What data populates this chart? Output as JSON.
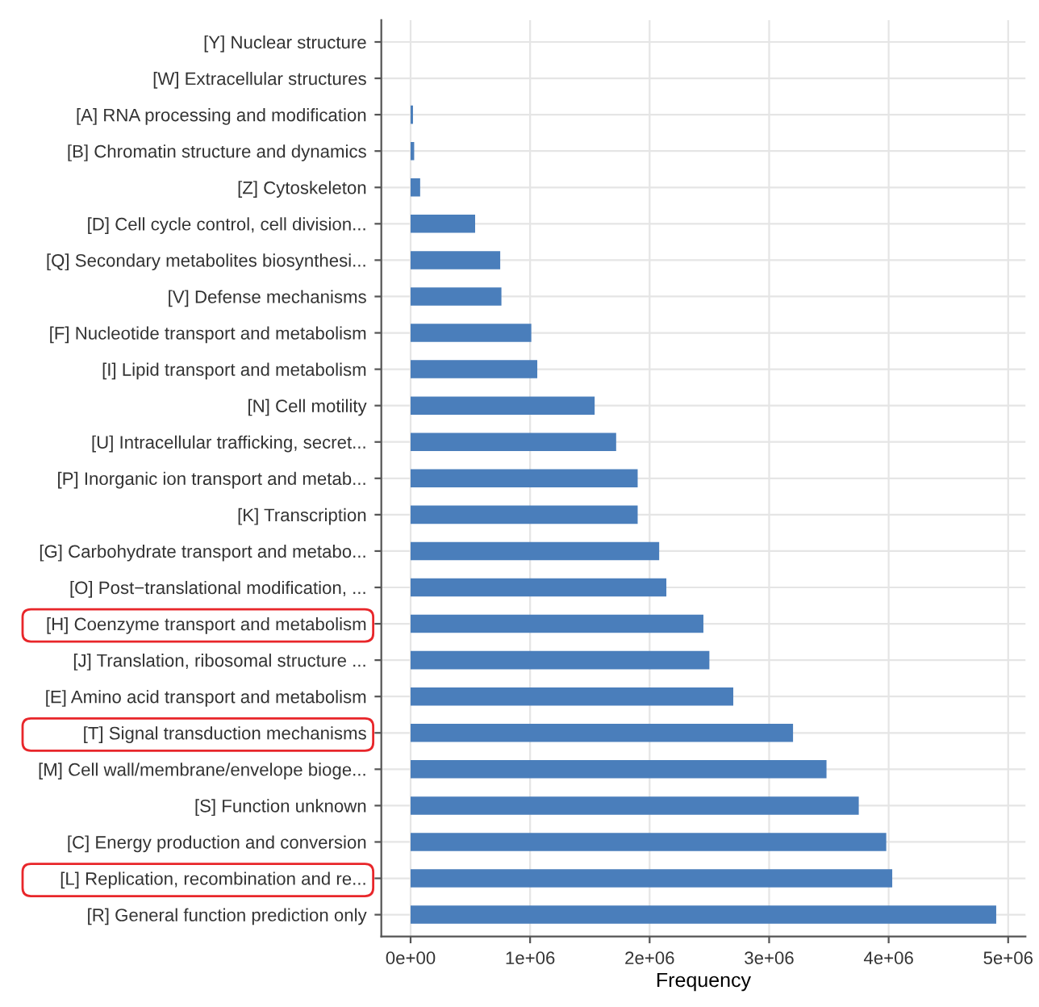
{
  "chart_data": {
    "type": "bar",
    "orientation": "horizontal",
    "xlabel": "Frequency",
    "categories": [
      "[Y] Nuclear structure",
      "[W] Extracellular structures",
      "[A] RNA processing and modification",
      "[B] Chromatin structure and dynamics",
      "[Z] Cytoskeleton",
      "[D] Cell cycle control, cell division...",
      "[Q] Secondary metabolites biosynthesi...",
      "[V] Defense mechanisms",
      "[F] Nucleotide transport and metabolism",
      "[I] Lipid transport and metabolism",
      "[N] Cell motility",
      "[U] Intracellular trafficking, secret...",
      "[P] Inorganic ion transport and metab...",
      "[K] Transcription",
      "[G] Carbohydrate transport and metabo...",
      "[O] Post−translational modification, ...",
      "[H] Coenzyme transport and metabolism",
      "[J] Translation, ribosomal structure ...",
      "[E] Amino acid transport and metabolism",
      "[T] Signal transduction mechanisms",
      "[M] Cell wall/membrane/envelope bioge...",
      "[S] Function unknown",
      "[C] Energy production and conversion",
      "[L] Replication, recombination and re...",
      "[R] General function prediction only"
    ],
    "values": [
      0,
      0,
      20000,
      30000,
      80000,
      540000,
      750000,
      760000,
      1010000,
      1060000,
      1540000,
      1720000,
      1900000,
      1900000,
      2080000,
      2140000,
      2450000,
      2500000,
      2700000,
      3200000,
      3480000,
      3750000,
      3980000,
      4030000,
      4900000
    ],
    "color": "#4a7ebb",
    "xlim": [
      -245000,
      5145000
    ],
    "xticks": [
      {
        "value": 0,
        "label": "0e+00"
      },
      {
        "value": 1000000,
        "label": "1e+06"
      },
      {
        "value": 2000000,
        "label": "2e+06"
      },
      {
        "value": 3000000,
        "label": "3e+06"
      },
      {
        "value": 4000000,
        "label": "4e+06"
      },
      {
        "value": 5000000,
        "label": "5e+06"
      }
    ],
    "grid": true,
    "legend": false
  }
}
